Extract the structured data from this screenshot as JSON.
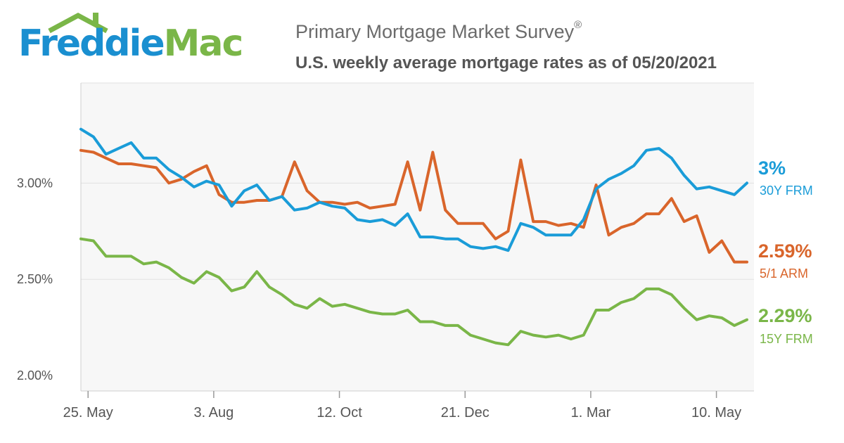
{
  "brand": {
    "logo_text_1": "Freddie",
    "logo_text_2": "Mac",
    "blue": "#1a8fd0",
    "green": "#7ab648"
  },
  "header": {
    "title": "Primary Mortgage Market Survey",
    "title_mark": "®",
    "subtitle": "U.S. weekly average mortgage rates as of 05/20/2021"
  },
  "chart_data": {
    "type": "line",
    "title": "Primary Mortgage Market Survey",
    "subtitle": "U.S. weekly average mortgage rates as of 05/20/2021",
    "x_start": "2020-05-21",
    "x_step_days": 7,
    "x_ticks": [
      {
        "date": "2020-05-25",
        "label": "25. May"
      },
      {
        "date": "2020-08-03",
        "label": "3. Aug"
      },
      {
        "date": "2020-10-12",
        "label": "12. Oct"
      },
      {
        "date": "2020-12-21",
        "label": "21. Dec"
      },
      {
        "date": "2021-03-01",
        "label": "1. Mar"
      },
      {
        "date": "2021-05-10",
        "label": "10. May"
      }
    ],
    "y_ticks": [
      {
        "value": 2.0,
        "label": "2.00%"
      },
      {
        "value": 2.5,
        "label": "2.50%"
      },
      {
        "value": 3.0,
        "label": "3.00%"
      }
    ],
    "ylim": [
      1.92,
      3.52
    ],
    "grid": true,
    "series": [
      {
        "name": "30Y FRM",
        "end_label": "3%",
        "color": "#1a9cd8",
        "values": [
          3.28,
          3.24,
          3.15,
          3.18,
          3.21,
          3.13,
          3.13,
          3.07,
          3.03,
          2.98,
          3.01,
          2.99,
          2.88,
          2.96,
          2.99,
          2.91,
          2.93,
          2.86,
          2.87,
          2.9,
          2.88,
          2.87,
          2.81,
          2.8,
          2.81,
          2.78,
          2.84,
          2.72,
          2.72,
          2.71,
          2.71,
          2.67,
          2.66,
          2.67,
          2.65,
          2.79,
          2.77,
          2.73,
          2.73,
          2.73,
          2.81,
          2.97,
          3.02,
          3.05,
          3.09,
          3.17,
          3.18,
          3.13,
          3.04,
          2.97,
          2.98,
          2.96,
          2.94,
          3.0
        ]
      },
      {
        "name": "5/1 ARM",
        "end_label": "2.59%",
        "color": "#d9652b",
        "values": [
          3.17,
          3.16,
          3.13,
          3.1,
          3.1,
          3.09,
          3.08,
          3.0,
          3.02,
          3.06,
          3.09,
          2.94,
          2.9,
          2.9,
          2.91,
          2.91,
          2.93,
          3.11,
          2.96,
          2.9,
          2.9,
          2.89,
          2.9,
          2.87,
          2.88,
          2.89,
          3.11,
          2.86,
          3.16,
          2.86,
          2.79,
          2.79,
          2.79,
          2.71,
          2.75,
          3.12,
          2.8,
          2.8,
          2.78,
          2.79,
          2.77,
          2.99,
          2.73,
          2.77,
          2.79,
          2.84,
          2.84,
          2.92,
          2.8,
          2.83,
          2.64,
          2.7,
          2.59,
          2.59
        ]
      },
      {
        "name": "15Y FRM",
        "end_label": "2.29%",
        "color": "#7ab648",
        "values": [
          2.71,
          2.7,
          2.62,
          2.62,
          2.62,
          2.58,
          2.59,
          2.56,
          2.51,
          2.48,
          2.54,
          2.51,
          2.44,
          2.46,
          2.54,
          2.46,
          2.42,
          2.37,
          2.35,
          2.4,
          2.36,
          2.37,
          2.35,
          2.33,
          2.32,
          2.32,
          2.34,
          2.28,
          2.28,
          2.26,
          2.26,
          2.21,
          2.19,
          2.17,
          2.16,
          2.23,
          2.21,
          2.2,
          2.21,
          2.19,
          2.21,
          2.34,
          2.34,
          2.38,
          2.4,
          2.45,
          2.45,
          2.42,
          2.35,
          2.29,
          2.31,
          2.3,
          2.26,
          2.29
        ]
      }
    ]
  }
}
